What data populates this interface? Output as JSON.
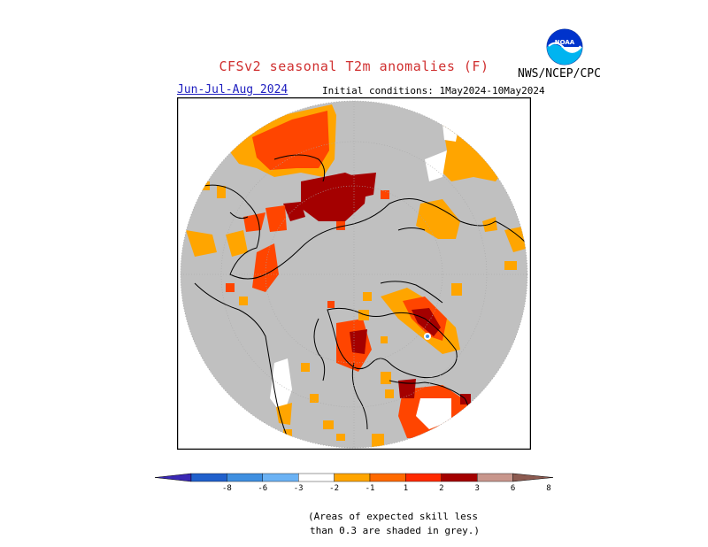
{
  "header": {
    "title": "CFSv2 seasonal T2m anomalies (F)",
    "season": "Jun-Jul-Aug 2024",
    "initial_conditions": "Initial conditions: 1May2024-10May2024",
    "agency": "NWS/NCEP/CPC",
    "logo_text": "NOAA"
  },
  "legend": {
    "ticks": [
      "-8",
      "-6",
      "-3",
      "-2",
      "-1",
      "1",
      "2",
      "3",
      "6",
      "8"
    ],
    "colors": [
      "#3a28b4",
      "#2060cc",
      "#3f8fe0",
      "#6bb2f4",
      "#ffffff",
      "#ffa500",
      "#ff6a00",
      "#ff2a00",
      "#a40000",
      "#c8968c",
      "#8c5a50"
    ]
  },
  "map": {
    "projection": "north-polar-stereographic",
    "region": "Northern Hemisphere",
    "colors": {
      "low_skill": "#c0c0c0",
      "near_normal": "#ffffff",
      "plus1_2": "#ffa500",
      "plus2_3": "#ff4500",
      "plus3_6": "#a40000",
      "coast": "#000000"
    }
  },
  "note": {
    "line1": "(Areas of expected skill less",
    "line2": "than 0.3 are shaded in grey.)"
  }
}
